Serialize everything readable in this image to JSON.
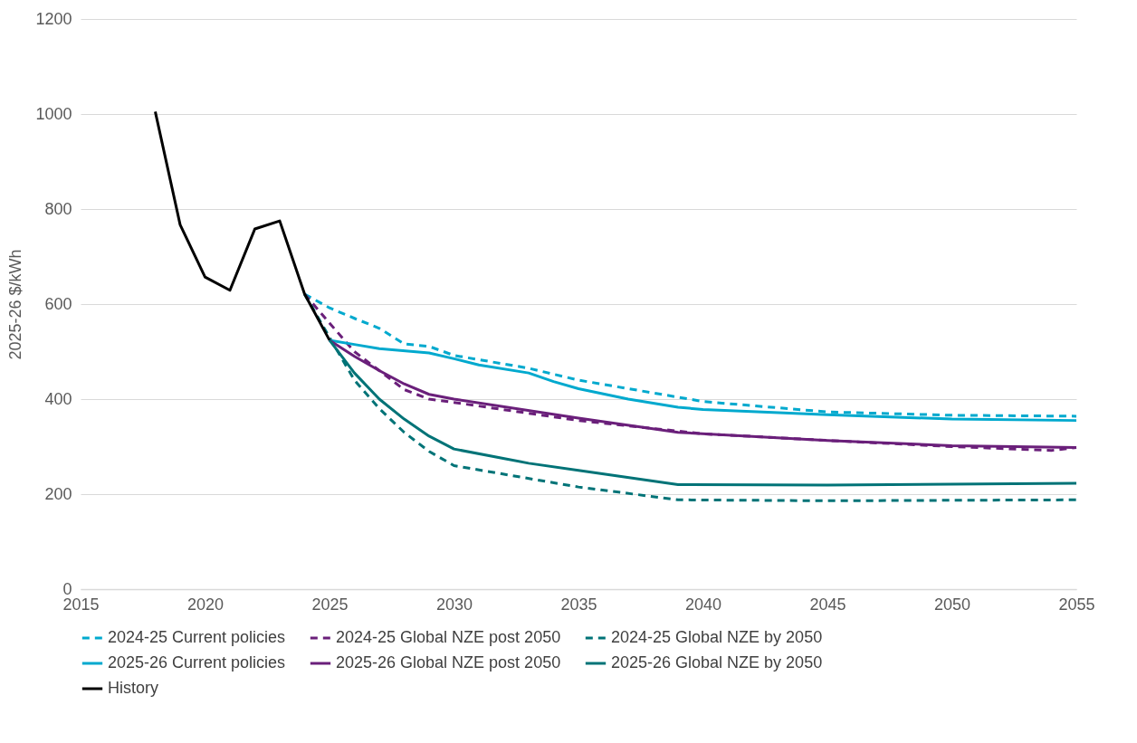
{
  "chart_data": {
    "type": "line",
    "ylabel": "2025-26 $/kWh",
    "xlim": [
      2015,
      2055
    ],
    "xticks": [
      2015,
      2020,
      2025,
      2030,
      2035,
      2040,
      2045,
      2050,
      2055
    ],
    "ylim": [
      0,
      1200
    ],
    "yticks": [
      0,
      200,
      400,
      600,
      800,
      1000,
      1200
    ],
    "grid": "y",
    "legend": "bottom",
    "marker": "none",
    "series": [
      {
        "name": "2024-25 Current policies",
        "color": "#00a9ce",
        "line_style": "dashed",
        "x": [
          2024,
          2025,
          2026,
          2027,
          2028,
          2029,
          2030,
          2033,
          2035,
          2040,
          2045,
          2050,
          2055
        ],
        "values": [
          621,
          592,
          570,
          549,
          516,
          511,
          492,
          465,
          440,
          395,
          373,
          366,
          364
        ]
      },
      {
        "name": "2024-25 Global NZE post 2050",
        "color": "#6a1f7a",
        "line_style": "dashed",
        "x": [
          2024,
          2025,
          2026,
          2027,
          2028,
          2029,
          2030,
          2035,
          2040,
          2045,
          2050,
          2054,
          2055
        ],
        "values": [
          621,
          560,
          500,
          460,
          420,
          400,
          393,
          355,
          327,
          313,
          300,
          292,
          298
        ]
      },
      {
        "name": "2024-25 Global NZE by 2050",
        "color": "#007377",
        "line_style": "dashed",
        "x": [
          2024,
          2025,
          2026,
          2027,
          2028,
          2029,
          2030,
          2035,
          2039,
          2045,
          2055
        ],
        "values": [
          621,
          530,
          440,
          380,
          330,
          290,
          260,
          215,
          188,
          186,
          188
        ]
      },
      {
        "name": "2025-26 Current policies",
        "color": "#00a9ce",
        "line_style": "solid",
        "x": [
          2025,
          2026,
          2027,
          2029,
          2030,
          2031,
          2033,
          2034,
          2035,
          2037,
          2039,
          2040,
          2045,
          2050,
          2055
        ],
        "values": [
          524,
          515,
          506,
          497,
          485,
          472,
          455,
          437,
          422,
          400,
          383,
          378,
          367,
          358,
          355
        ]
      },
      {
        "name": "2025-26 Global NZE post 2050",
        "color": "#6a1f7a",
        "line_style": "solid",
        "x": [
          2025,
          2026,
          2027,
          2028,
          2029,
          2030,
          2035,
          2039,
          2045,
          2050,
          2055
        ],
        "values": [
          524,
          490,
          460,
          432,
          410,
          400,
          360,
          330,
          313,
          302,
          298
        ]
      },
      {
        "name": "2025-26 Global NZE by 2050",
        "color": "#007377",
        "line_style": "solid",
        "x": [
          2025,
          2026,
          2027,
          2028,
          2029,
          2030,
          2033,
          2035,
          2039,
          2045,
          2055
        ],
        "values": [
          524,
          455,
          400,
          358,
          322,
          295,
          265,
          250,
          220,
          219,
          223
        ]
      },
      {
        "name": "History",
        "color": "#000000",
        "line_style": "solid",
        "x": [
          2018,
          2019,
          2020,
          2021,
          2022,
          2023,
          2024,
          2025
        ],
        "values": [
          1005,
          767,
          657,
          629,
          758,
          775,
          621,
          524
        ]
      }
    ]
  }
}
